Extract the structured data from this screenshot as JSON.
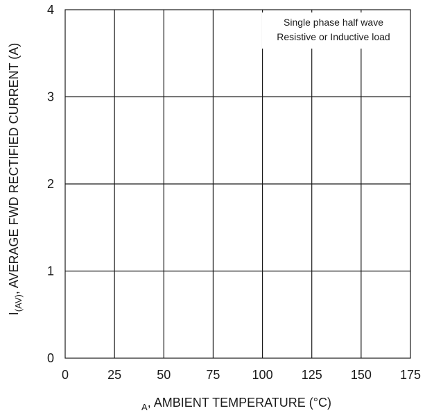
{
  "chart_data": {
    "type": "line",
    "title": "",
    "xlabel_prefix": "",
    "xlabel_sub": "A",
    "xlabel_rest": ", AMBIENT TEMPERATURE (°C)",
    "ylabel_prefix": "I",
    "ylabel_sub": "(AV)",
    "ylabel_rest": ", AVERAGE FWD RECTIFIED CURRENT (A)",
    "xlim": [
      0,
      175
    ],
    "ylim": [
      0,
      4
    ],
    "x_ticks": [
      0,
      25,
      50,
      75,
      100,
      125,
      150,
      175
    ],
    "y_ticks": [
      0,
      1,
      2,
      3,
      4
    ],
    "grid": true,
    "annotations": [
      "Single phase half wave",
      "Resistive or Inductive load"
    ],
    "series": []
  }
}
